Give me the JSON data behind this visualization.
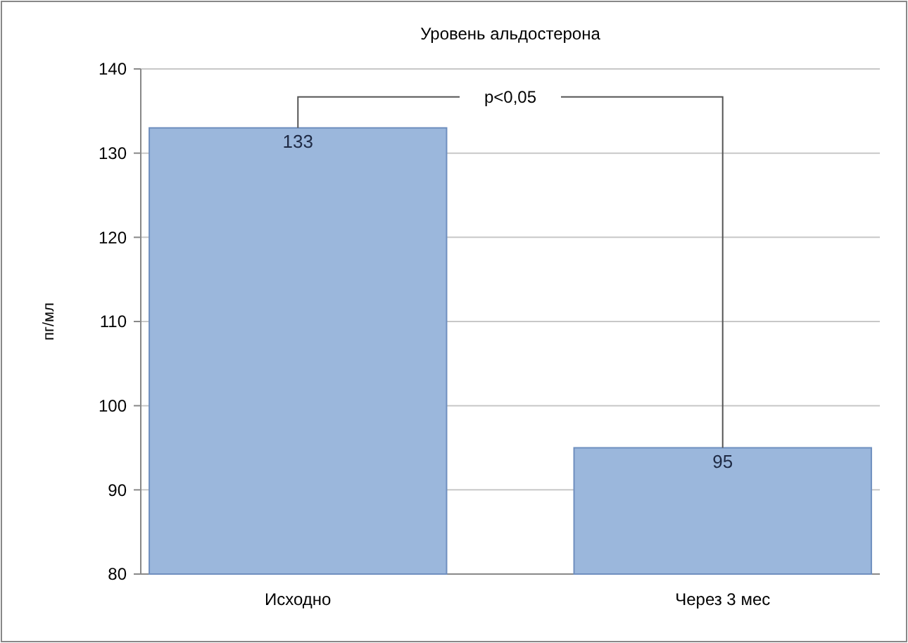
{
  "chart_data": {
    "type": "bar",
    "title": "Уровень альдостерона",
    "ylabel": "пг/мл",
    "categories": [
      "Исходно",
      "Через 3 мес"
    ],
    "values": [
      133,
      95
    ],
    "color": "#9bb7dc",
    "ylim": [
      80,
      140
    ],
    "yticks": [
      80,
      90,
      100,
      110,
      120,
      130,
      140
    ],
    "grid": "y",
    "data_labels": true,
    "annotations": [
      "p<0,05"
    ]
  }
}
